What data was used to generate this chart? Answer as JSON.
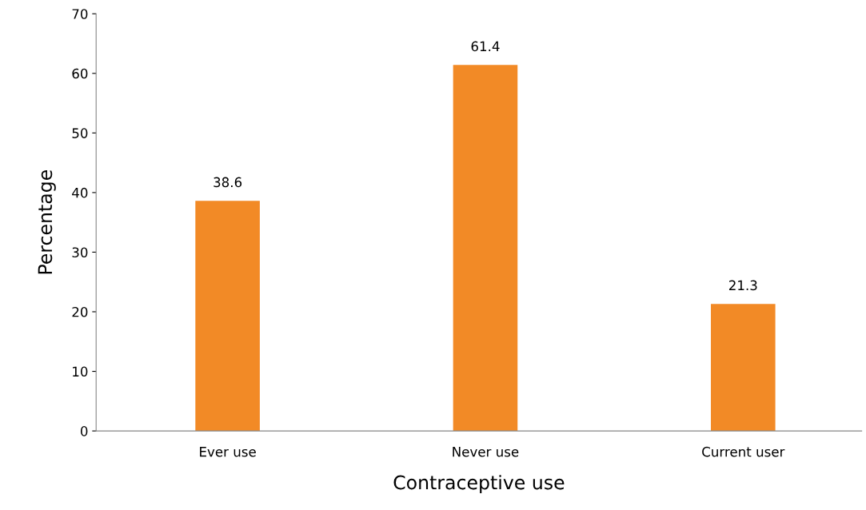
{
  "chart_data": {
    "type": "bar",
    "xlabel": "Contraceptive use",
    "ylabel": "Percentage",
    "categories": [
      "Ever use",
      "Never use",
      "Current user"
    ],
    "values": [
      38.6,
      61.4,
      21.3
    ],
    "color": "#f28a26",
    "ylim": [
      0,
      70
    ],
    "yticks": [
      0,
      10,
      20,
      30,
      40,
      50,
      60,
      70
    ],
    "grid": false,
    "data_labels": true
  }
}
